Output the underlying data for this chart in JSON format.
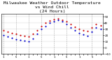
{
  "title": "Milwaukee Weather Outdoor Temperature\nvs Wind Chill\n(24 Hours)",
  "title_fontsize": 4.5,
  "background_color": "#ffffff",
  "grid_color": "#aaaaaa",
  "temp_color": "#cc0000",
  "wind_chill_color": "#0000cc",
  "x_hours": [
    0,
    1,
    2,
    3,
    4,
    5,
    6,
    7,
    8,
    9,
    10,
    11,
    12,
    13,
    14,
    15,
    16,
    17,
    18,
    19,
    20,
    21,
    22,
    23
  ],
  "temp_values": [
    28,
    26,
    24,
    22,
    20,
    19,
    18,
    22,
    28,
    35,
    40,
    44,
    46,
    47,
    45,
    42,
    38,
    34,
    30,
    28,
    27,
    32,
    38,
    36
  ],
  "wind_chill_values": [
    20,
    18,
    16,
    14,
    12,
    11,
    10,
    15,
    22,
    30,
    35,
    40,
    43,
    45,
    42,
    38,
    33,
    28,
    24,
    21,
    19,
    26,
    32,
    30
  ],
  "ylim": [
    -10,
    55
  ],
  "yticks": [
    -10,
    0,
    10,
    20,
    30,
    40,
    50
  ],
  "xlim": [
    -0.5,
    23.5
  ],
  "vgrid_positions": [
    0,
    3,
    6,
    9,
    12,
    15,
    18,
    21
  ],
  "dot_size": 2.5
}
